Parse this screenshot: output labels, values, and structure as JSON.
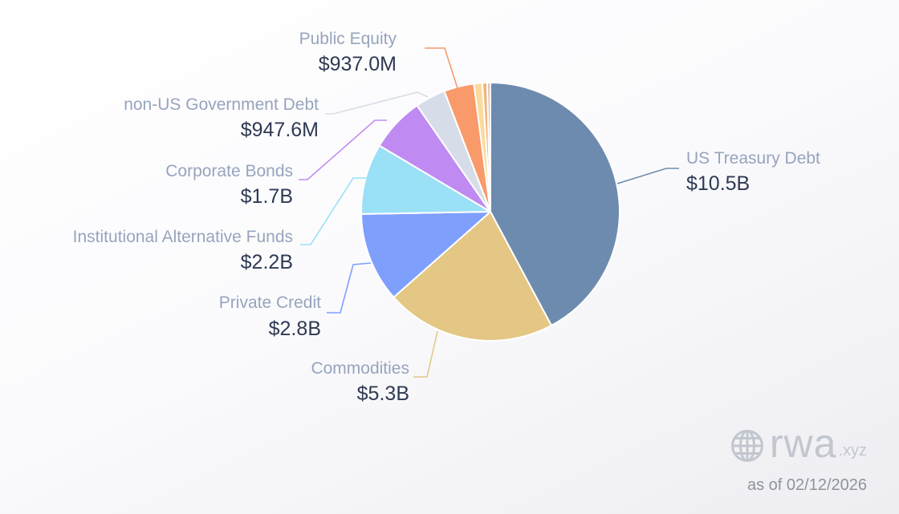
{
  "chart_data": {
    "type": "pie",
    "title": "",
    "unit": "USD",
    "slices": [
      {
        "name": "US Treasury Debt",
        "label": "$10.5B",
        "value": 10500,
        "color": "#6d8bae"
      },
      {
        "name": "Commodities",
        "label": "$5.3B",
        "value": 5300,
        "color": "#e4c784"
      },
      {
        "name": "Private Credit",
        "label": "$2.8B",
        "value": 2800,
        "color": "#7f9ffd"
      },
      {
        "name": "Institutional Alternative Funds",
        "label": "$2.2B",
        "value": 2200,
        "color": "#9ae0f6"
      },
      {
        "name": "Corporate Bonds",
        "label": "$1.7B",
        "value": 1700,
        "color": "#bf8bf2"
      },
      {
        "name": "non-US Government Debt",
        "label": "$947.6M",
        "value": 947.6,
        "color": "#d6dde8"
      },
      {
        "name": "Public Equity",
        "label": "$937.0M",
        "value": 937.0,
        "color": "#f89a6a"
      },
      {
        "name": "",
        "label": "",
        "value": 260,
        "color": "#fbdb9b"
      },
      {
        "name": "",
        "label": "",
        "value": 150,
        "color": "#f2b27e"
      },
      {
        "name": "",
        "label": "",
        "value": 100,
        "color": "#ddc4a8"
      }
    ]
  },
  "branding": {
    "logo_icon": "globe-icon",
    "name": "rwa",
    "tld": ".xyz",
    "as_of": "as of 02/12/2026"
  }
}
